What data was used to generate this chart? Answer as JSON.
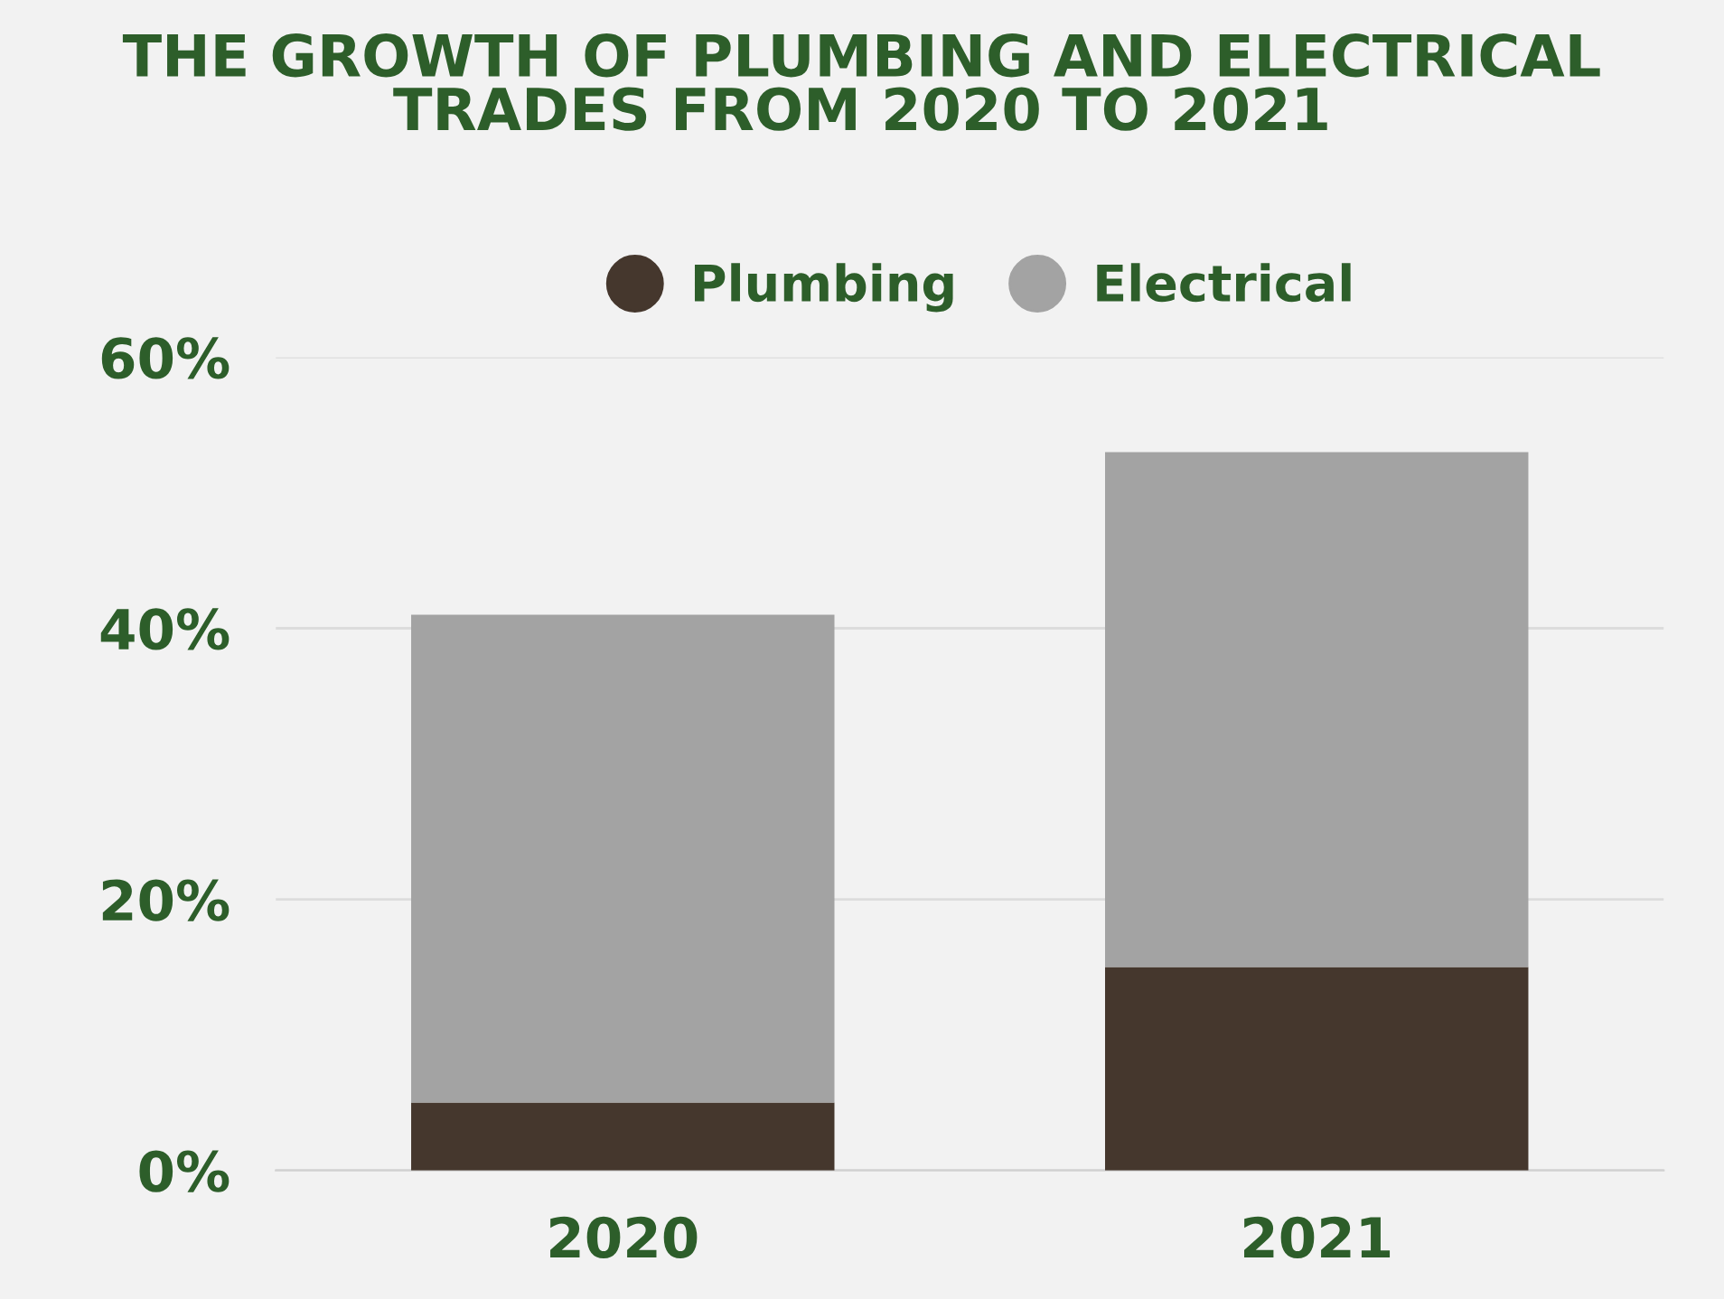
{
  "chart_data": {
    "type": "bar",
    "title": "THE GROWTH OF PLUMBING AND ELECTRICAL\nTRADES FROM 2020 TO 2021",
    "categories": [
      "2020",
      "2021"
    ],
    "stacked": true,
    "series": [
      {
        "name": "Plumbing",
        "color": "#45372d",
        "values": [
          5,
          15
        ]
      },
      {
        "name": "Electrical",
        "color": "#a3a3a3",
        "values": [
          36,
          38
        ]
      }
    ],
    "ylim": [
      0,
      60
    ],
    "yticks": [
      {
        "value": 0,
        "label": "0%"
      },
      {
        "value": 20,
        "label": "20%"
      },
      {
        "value": 40,
        "label": "40%"
      },
      {
        "value": 60,
        "label": "60%"
      }
    ],
    "grid": "y",
    "legend": "top"
  }
}
